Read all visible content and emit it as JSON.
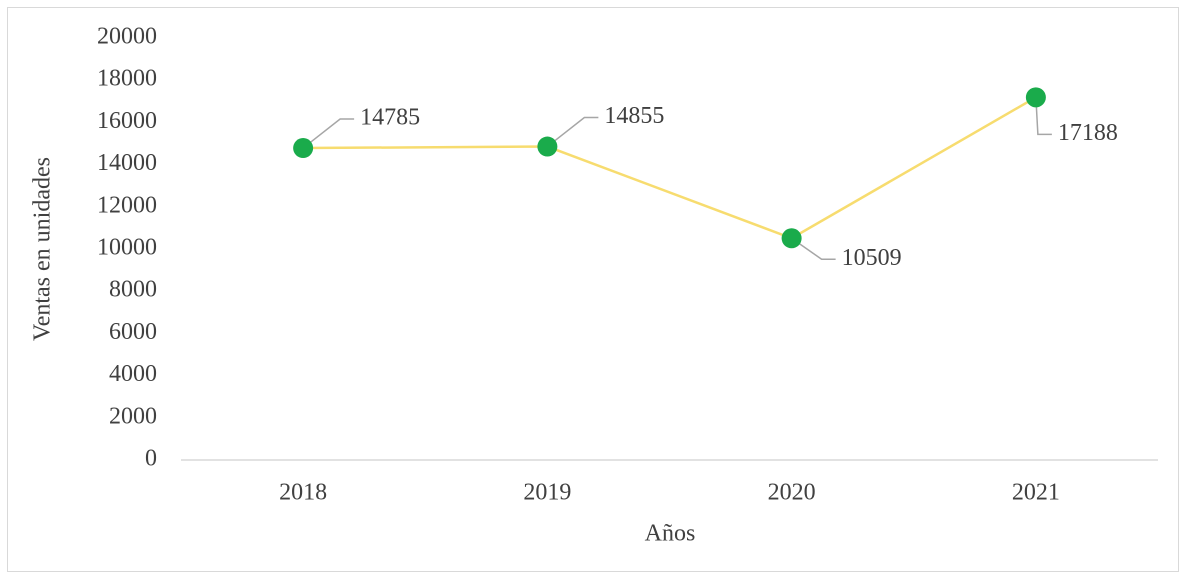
{
  "chart_data": {
    "type": "line",
    "categories": [
      "2018",
      "2019",
      "2020",
      "2021"
    ],
    "series": [
      {
        "name": "Ventas",
        "color": "#f7dc6f",
        "marker_color": "#1aab4b",
        "values": [
          14785,
          14855,
          10509,
          17188
        ]
      }
    ],
    "xlabel": "Años",
    "ylabel": "Ventas en unidades",
    "ylim": [
      0,
      20000
    ],
    "yticks": [
      0,
      2000,
      4000,
      6000,
      8000,
      10000,
      12000,
      14000,
      16000,
      18000,
      20000
    ],
    "grid": false
  }
}
